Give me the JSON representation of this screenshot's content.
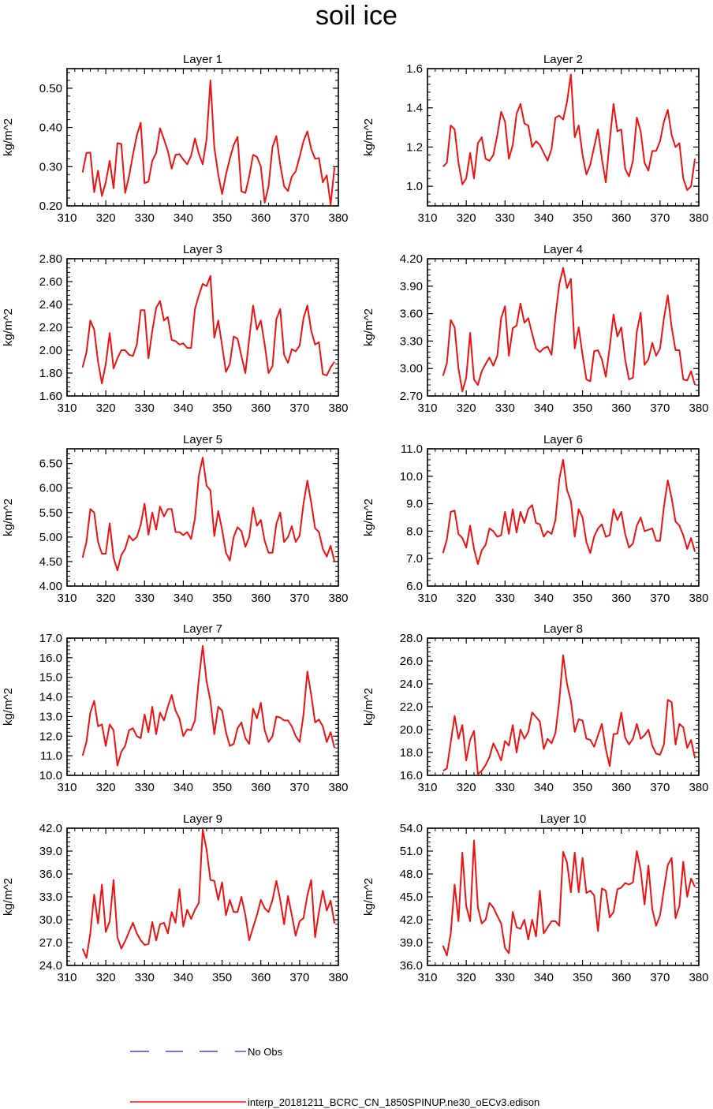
{
  "title": "soil ice",
  "legend": {
    "obs_label": "No Obs",
    "obs_color": "#1f1fd0",
    "model_label": "interp_20181211_BCRC_CN_1850SPINUP.ne30_oECv3.edison",
    "model_color": "#ee1111"
  },
  "chart_data": [
    {
      "type": "line",
      "title": "Layer 1",
      "xlabel": "",
      "ylabel": "kg/m^2",
      "xlim": [
        310,
        380
      ],
      "xticks": [
        310,
        320,
        330,
        340,
        350,
        360,
        370,
        380
      ],
      "ylim": [
        0.2,
        0.55
      ],
      "yticks": [
        "0.20",
        "0.30",
        "0.40",
        "0.50"
      ],
      "x_start": 314,
      "values": [
        0.285,
        0.335,
        0.336,
        0.235,
        0.29,
        0.225,
        0.26,
        0.315,
        0.245,
        0.36,
        0.358,
        0.233,
        0.275,
        0.33,
        0.38,
        0.412,
        0.258,
        0.262,
        0.315,
        0.335,
        0.398,
        0.37,
        0.34,
        0.295,
        0.33,
        0.332,
        0.318,
        0.306,
        0.328,
        0.372,
        0.333,
        0.306,
        0.37,
        0.52,
        0.35,
        0.28,
        0.23,
        0.28,
        0.32,
        0.355,
        0.376,
        0.237,
        0.233,
        0.275,
        0.33,
        0.325,
        0.3,
        0.208,
        0.25,
        0.35,
        0.378,
        0.305,
        0.25,
        0.238,
        0.275,
        0.288,
        0.325,
        0.365,
        0.39,
        0.345,
        0.32,
        0.322,
        0.26,
        0.278,
        0.203,
        0.298
      ]
    },
    {
      "type": "line",
      "title": "Layer 2",
      "xlabel": "",
      "ylabel": "kg/m^2",
      "xlim": [
        310,
        380
      ],
      "xticks": [
        310,
        320,
        330,
        340,
        350,
        360,
        370,
        380
      ],
      "ylim": [
        0.9,
        1.6
      ],
      "yticks": [
        "1.0",
        "1.2",
        "1.4",
        "1.6"
      ],
      "x_start": 314,
      "values": [
        1.1,
        1.12,
        1.31,
        1.29,
        1.12,
        1.01,
        1.04,
        1.17,
        1.04,
        1.22,
        1.25,
        1.14,
        1.13,
        1.16,
        1.26,
        1.38,
        1.33,
        1.14,
        1.21,
        1.37,
        1.42,
        1.32,
        1.31,
        1.2,
        1.23,
        1.21,
        1.17,
        1.13,
        1.19,
        1.35,
        1.36,
        1.34,
        1.43,
        1.57,
        1.25,
        1.31,
        1.16,
        1.06,
        1.11,
        1.2,
        1.29,
        1.14,
        1.02,
        1.23,
        1.42,
        1.28,
        1.29,
        1.09,
        1.05,
        1.13,
        1.35,
        1.28,
        1.12,
        1.08,
        1.18,
        1.18,
        1.23,
        1.33,
        1.39,
        1.26,
        1.2,
        1.22,
        1.04,
        0.98,
        1.0,
        1.14
      ]
    },
    {
      "type": "line",
      "title": "Layer 3",
      "xlabel": "",
      "ylabel": "kg/m^2",
      "xlim": [
        310,
        380
      ],
      "xticks": [
        310,
        320,
        330,
        340,
        350,
        360,
        370,
        380
      ],
      "ylim": [
        1.6,
        2.8
      ],
      "yticks": [
        "1.60",
        "1.80",
        "2.00",
        "2.20",
        "2.40",
        "2.60",
        "2.80"
      ],
      "x_start": 314,
      "values": [
        1.85,
        1.98,
        2.26,
        2.18,
        1.9,
        1.71,
        1.88,
        2.15,
        1.84,
        1.93,
        2.0,
        2.0,
        1.96,
        1.95,
        2.05,
        2.35,
        2.35,
        1.93,
        2.17,
        2.37,
        2.43,
        2.26,
        2.29,
        2.09,
        2.08,
        2.05,
        2.06,
        2.02,
        2.02,
        2.36,
        2.48,
        2.58,
        2.56,
        2.65,
        2.11,
        2.26,
        2.04,
        1.81,
        1.88,
        2.12,
        2.1,
        1.95,
        1.8,
        2.1,
        2.39,
        2.18,
        2.26,
        2.05,
        1.8,
        1.86,
        2.27,
        2.36,
        1.96,
        1.89,
        2.01,
        1.99,
        2.04,
        2.28,
        2.39,
        2.17,
        2.05,
        2.07,
        1.79,
        1.78,
        1.85,
        1.9
      ]
    },
    {
      "type": "line",
      "title": "Layer 4",
      "xlabel": "",
      "ylabel": "kg/m^2",
      "xlim": [
        310,
        380
      ],
      "xticks": [
        310,
        320,
        330,
        340,
        350,
        360,
        370,
        380
      ],
      "ylim": [
        2.7,
        4.2
      ],
      "yticks": [
        "2.70",
        "3.00",
        "3.30",
        "3.60",
        "3.90",
        "4.20"
      ],
      "x_start": 314,
      "values": [
        2.92,
        3.06,
        3.53,
        3.45,
        3.0,
        2.75,
        2.9,
        3.39,
        2.88,
        2.82,
        2.97,
        3.05,
        3.12,
        3.03,
        3.14,
        3.55,
        3.68,
        3.14,
        3.44,
        3.47,
        3.71,
        3.5,
        3.55,
        3.38,
        3.22,
        3.18,
        3.22,
        3.24,
        3.15,
        3.57,
        3.92,
        4.1,
        3.88,
        3.98,
        3.22,
        3.45,
        3.15,
        2.88,
        2.86,
        3.19,
        3.2,
        3.1,
        2.91,
        3.23,
        3.59,
        3.35,
        3.45,
        3.1,
        2.88,
        2.9,
        3.4,
        3.61,
        3.04,
        3.1,
        3.28,
        3.14,
        3.22,
        3.55,
        3.8,
        3.45,
        3.2,
        3.2,
        2.88,
        2.87,
        2.97,
        2.82
      ]
    },
    {
      "type": "line",
      "title": "Layer 5",
      "xlabel": "",
      "ylabel": "kg/m^2",
      "xlim": [
        310,
        380
      ],
      "xticks": [
        310,
        320,
        330,
        340,
        350,
        360,
        370,
        380
      ],
      "ylim": [
        4.0,
        6.8
      ],
      "yticks": [
        "4.00",
        "4.50",
        "5.00",
        "5.50",
        "6.00",
        "6.50"
      ],
      "x_start": 314,
      "values": [
        4.58,
        4.9,
        5.57,
        5.5,
        4.9,
        4.66,
        4.66,
        5.28,
        4.58,
        4.32,
        4.63,
        4.76,
        5.03,
        4.93,
        5.0,
        5.25,
        5.68,
        5.05,
        5.5,
        5.15,
        5.62,
        5.42,
        5.57,
        5.57,
        5.1,
        5.1,
        5.04,
        5.1,
        4.96,
        5.38,
        6.25,
        6.62,
        6.05,
        5.95,
        5.02,
        5.53,
        5.15,
        4.68,
        4.52,
        5.0,
        5.2,
        5.12,
        4.8,
        5.0,
        5.6,
        5.23,
        5.35,
        4.92,
        4.68,
        4.68,
        5.27,
        5.5,
        4.9,
        5.0,
        5.22,
        4.9,
        5.03,
        5.68,
        6.15,
        5.7,
        5.18,
        5.1,
        4.76,
        4.6,
        4.82,
        4.5
      ]
    },
    {
      "type": "line",
      "title": "Layer 6",
      "xlabel": "",
      "ylabel": "kg/m^2",
      "xlim": [
        310,
        380
      ],
      "xticks": [
        310,
        320,
        330,
        340,
        350,
        360,
        370,
        380
      ],
      "ylim": [
        6.0,
        11.0
      ],
      "yticks": [
        "6.0",
        "7.0",
        "8.0",
        "9.0",
        "10.0",
        "11.0"
      ],
      "x_start": 314,
      "values": [
        7.2,
        7.7,
        8.7,
        8.75,
        7.9,
        7.75,
        7.4,
        8.2,
        7.35,
        6.8,
        7.3,
        7.5,
        8.1,
        8.0,
        7.8,
        7.85,
        8.7,
        7.9,
        8.8,
        7.95,
        8.7,
        8.3,
        8.8,
        8.95,
        8.3,
        8.25,
        7.8,
        8.0,
        7.9,
        8.4,
        9.9,
        10.6,
        9.5,
        9.1,
        7.8,
        8.8,
        8.5,
        7.6,
        7.2,
        7.8,
        8.1,
        8.25,
        7.8,
        7.85,
        8.8,
        8.4,
        8.7,
        7.9,
        7.4,
        7.55,
        8.2,
        8.5,
        8.0,
        8.05,
        8.1,
        7.65,
        7.65,
        8.9,
        9.85,
        9.2,
        8.35,
        8.2,
        7.85,
        7.35,
        7.75,
        7.25
      ]
    },
    {
      "type": "line",
      "title": "Layer 7",
      "xlabel": "",
      "ylabel": "kg/m^2",
      "xlim": [
        310,
        380
      ],
      "xticks": [
        310,
        320,
        330,
        340,
        350,
        360,
        370,
        380
      ],
      "ylim": [
        10.0,
        17.0
      ],
      "yticks": [
        "10.0",
        "11.0",
        "12.0",
        "13.0",
        "14.0",
        "15.0",
        "16.0",
        "17.0"
      ],
      "x_start": 314,
      "values": [
        11.0,
        11.7,
        13.2,
        13.8,
        12.5,
        12.6,
        11.5,
        12.6,
        12.3,
        10.5,
        11.2,
        11.5,
        12.3,
        12.4,
        12.0,
        11.9,
        13.1,
        12.2,
        13.5,
        12.1,
        13.2,
        12.8,
        13.5,
        14.1,
        13.3,
        12.9,
        12.0,
        12.35,
        12.3,
        12.8,
        14.9,
        16.6,
        14.8,
        13.8,
        12.1,
        13.5,
        13.3,
        12.2,
        11.5,
        11.6,
        12.4,
        12.7,
        11.9,
        11.6,
        13.4,
        12.9,
        13.7,
        12.3,
        11.7,
        12.0,
        13.0,
        12.95,
        12.8,
        12.8,
        12.5,
        12.0,
        11.7,
        13.1,
        15.3,
        14.1,
        12.7,
        12.85,
        12.5,
        11.7,
        12.2,
        11.4
      ]
    },
    {
      "type": "line",
      "title": "Layer 8",
      "xlabel": "",
      "ylabel": "kg/m^2",
      "xlim": [
        310,
        380
      ],
      "xticks": [
        310,
        320,
        330,
        340,
        350,
        360,
        370,
        380
      ],
      "ylim": [
        16.0,
        28.0
      ],
      "yticks": [
        "16.0",
        "18.0",
        "20.0",
        "22.0",
        "24.0",
        "26.0",
        "28.0"
      ],
      "x_start": 314,
      "values": [
        16.4,
        16.6,
        18.9,
        21.2,
        19.2,
        20.4,
        17.3,
        19.1,
        19.9,
        16.1,
        16.4,
        16.9,
        17.6,
        18.8,
        18.1,
        17.3,
        19.0,
        18.6,
        20.4,
        18.0,
        20.0,
        19.2,
        19.8,
        21.5,
        21.1,
        20.7,
        18.3,
        19.2,
        18.8,
        19.7,
        22.5,
        26.5,
        24.0,
        22.5,
        19.8,
        20.9,
        20.8,
        19.2,
        19.1,
        18.5,
        19.5,
        20.5,
        18.3,
        16.8,
        19.6,
        19.65,
        21.5,
        19.3,
        18.7,
        19.2,
        20.5,
        19.2,
        19.5,
        20.0,
        18.6,
        17.9,
        17.8,
        18.7,
        22.6,
        22.4,
        18.7,
        20.5,
        20.2,
        18.4,
        19.1,
        17.5
      ]
    },
    {
      "type": "line",
      "title": "Layer 9",
      "xlabel": "",
      "ylabel": "kg/m^2",
      "xlim": [
        310,
        380
      ],
      "xticks": [
        310,
        320,
        330,
        340,
        350,
        360,
        370,
        380
      ],
      "ylim": [
        24.0,
        42.0
      ],
      "yticks": [
        "24.0",
        "27.0",
        "30.0",
        "33.0",
        "36.0",
        "39.0",
        "42.0"
      ],
      "x_start": 314,
      "values": [
        26.2,
        25.0,
        28.2,
        33.3,
        29.5,
        34.6,
        28.4,
        29.8,
        35.2,
        27.7,
        26.2,
        27.2,
        28.4,
        29.6,
        28.2,
        27.3,
        26.7,
        26.8,
        29.7,
        27.3,
        29.4,
        29.6,
        28.2,
        31.0,
        29.6,
        34.0,
        29.1,
        31.3,
        30.1,
        31.3,
        32.2,
        41.8,
        39.2,
        35.2,
        35.1,
        32.6,
        34.9,
        30.6,
        32.6,
        31.0,
        31.0,
        33.0,
        30.6,
        27.3,
        29.0,
        30.6,
        32.6,
        31.5,
        31.0,
        32.6,
        35.1,
        32.6,
        29.4,
        33.1,
        30.6,
        27.9,
        29.8,
        30.2,
        33.2,
        35.2,
        27.7,
        31.0,
        33.8,
        31.2,
        32.5,
        29.5
      ]
    },
    {
      "type": "line",
      "title": "Layer 10",
      "xlabel": "",
      "ylabel": "kg/m^2",
      "xlim": [
        310,
        380
      ],
      "xticks": [
        310,
        320,
        330,
        340,
        350,
        360,
        370,
        380
      ],
      "ylim": [
        36.0,
        54.0
      ],
      "yticks": [
        "36.0",
        "39.0",
        "42.0",
        "45.0",
        "48.0",
        "51.0",
        "54.0"
      ],
      "x_start": 314,
      "values": [
        38.6,
        37.3,
        40.2,
        46.6,
        41.8,
        50.8,
        43.8,
        41.8,
        52.4,
        43.6,
        41.5,
        42.0,
        44.2,
        43.6,
        42.5,
        41.5,
        38.3,
        37.6,
        43.0,
        41.0,
        40.8,
        42.0,
        39.4,
        42.0,
        39.8,
        45.8,
        40.2,
        41.0,
        41.8,
        41.8,
        41.2,
        50.9,
        49.5,
        45.6,
        50.8,
        45.6,
        50.1,
        45.5,
        45.8,
        45.2,
        40.5,
        46.1,
        45.8,
        42.3,
        43.0,
        46.0,
        46.2,
        46.8,
        46.6,
        46.9,
        51.0,
        48.5,
        44.0,
        49.1,
        43.4,
        41.2,
        42.6,
        46.0,
        49.2,
        50.1,
        42.2,
        43.8,
        49.6,
        45.0,
        47.4,
        46.3
      ]
    }
  ]
}
